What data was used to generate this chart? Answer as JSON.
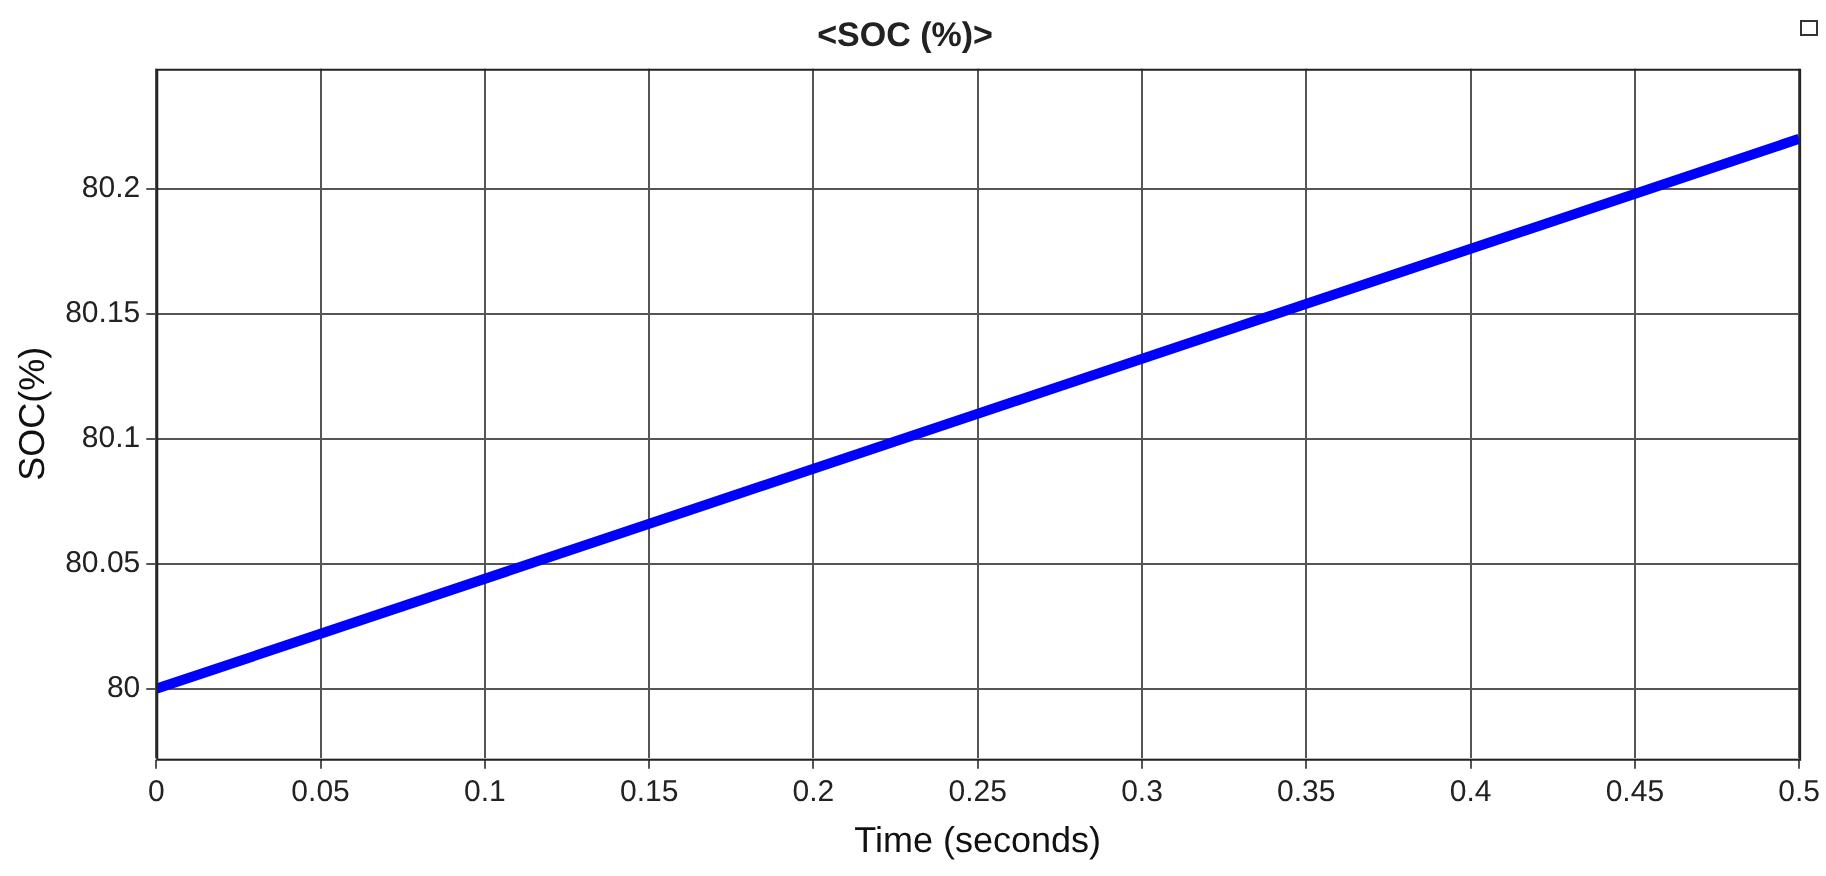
{
  "chart_data": {
    "type": "line",
    "title": "<SOC (%)>",
    "xlabel": "Time (seconds)",
    "ylabel": "SOC(%)",
    "x": [
      0,
      0.5
    ],
    "series": [
      {
        "color": "#0000ff",
        "values": [
          80,
          80.22
        ]
      }
    ],
    "xlim": [
      0,
      0.5
    ],
    "xticks": [
      0,
      0.05,
      0.1,
      0.15,
      0.2,
      0.25,
      0.3,
      0.35,
      0.4,
      0.45,
      0.5
    ],
    "ylim": [
      79.972,
      80.248
    ],
    "yticks": [
      80,
      80.05,
      80.1,
      80.15,
      80.2
    ],
    "grid": true,
    "legend": false,
    "marker": "none",
    "line_style": "solid"
  }
}
